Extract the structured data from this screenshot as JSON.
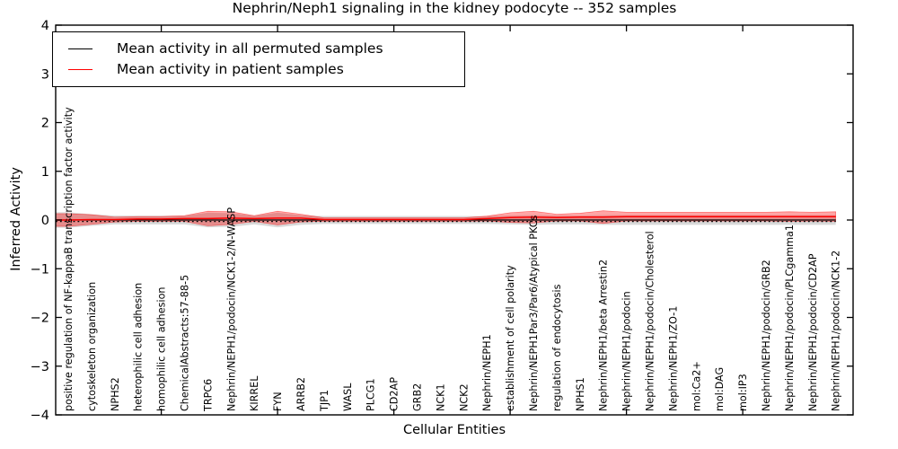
{
  "figure": {
    "title": "Nephrin/Neph1 signaling in the kidney podocyte -- 352 samples",
    "xlabel": "Cellular Entities",
    "ylabel": "Inferred Activity",
    "legend": [
      {
        "label": "Mean activity in all permuted samples",
        "color": "#000000"
      },
      {
        "label": "Mean activity in patient samples",
        "color": "#ff0000"
      }
    ]
  },
  "chart_data": {
    "type": "line",
    "title": "Nephrin/Neph1 signaling in the kidney podocyte -- 352 samples",
    "xlabel": "Cellular Entities",
    "ylabel": "Inferred Activity",
    "ylim": [
      -4,
      4
    ],
    "yticks": [
      4,
      3,
      2,
      1,
      0,
      -1,
      -2,
      -3,
      -4
    ],
    "xticks_major": [
      5,
      10,
      15,
      20,
      25,
      30
    ],
    "grid": false,
    "legend_position": "upper left",
    "categories": [
      "positive regulation of NF-kappaB transcription factor activity",
      "cytoskeleton organization",
      "NPHS2",
      "heterophilic cell adhesion",
      "homophilic cell adhesion",
      "ChemicalAbstracts:57-88-5",
      "TRPC6",
      "Nephrin/NEPH1/podocin/NCK1-2/N-WASP",
      "KIRREL",
      "FYN",
      "ARRB2",
      "TJP1",
      "WASL",
      "PLCG1",
      "CD2AP",
      "GRB2",
      "NCK1",
      "NCK2",
      "Nephrin/NEPH1",
      "establishment of cell polarity",
      "Nephrin/NEPH1Par3/Par6/Atypical PKCs",
      "regulation of endocytosis",
      "NPHS1",
      "Nephrin/NEPH1/beta Arrestin2",
      "Nephrin/NEPH1/podocin",
      "Nephrin/NEPH1/podocin/Cholesterol",
      "Nephrin/NEPH1/ZO-1",
      "mol:Ca2+",
      "mol:DAG",
      "mol:IP3",
      "Nephrin/NEPH1/podocin/GRB2",
      "Nephrin/NEPH1/podocin/PLCgamma1",
      "Nephrin/NEPH1/podocin/CD2AP",
      "Nephrin/NEPH1/podocin/NCK1-2"
    ],
    "series": [
      {
        "name": "Mean activity in all permuted samples",
        "color": "#000000",
        "line_style": "solid",
        "values": [
          0,
          0,
          0,
          0,
          0,
          0,
          0,
          0,
          0,
          0,
          0,
          0,
          0,
          0,
          0,
          0,
          0,
          0,
          0,
          0,
          0,
          0,
          0,
          0,
          0,
          0,
          0,
          0,
          0,
          0,
          0,
          0,
          0,
          0
        ],
        "band_halfwidth": [
          0.16,
          0.12,
          0.09,
          0.09,
          0.09,
          0.09,
          0.15,
          0.14,
          0.09,
          0.15,
          0.1,
          0.08,
          0.08,
          0.08,
          0.08,
          0.08,
          0.08,
          0.08,
          0.08,
          0.09,
          0.1,
          0.09,
          0.09,
          0.1,
          0.1,
          0.1,
          0.1,
          0.1,
          0.1,
          0.1,
          0.1,
          0.1,
          0.1,
          0.1
        ],
        "band_color": "rgba(125,125,125,0.30)"
      },
      {
        "name": "Mean activity in patient samples",
        "color": "#ff0000",
        "line_style": "solid",
        "values": [
          0.0,
          0.01,
          0.01,
          0.02,
          0.02,
          0.03,
          0.03,
          0.04,
          0.03,
          0.04,
          0.04,
          0.01,
          0.01,
          0.01,
          0.01,
          0.01,
          0.01,
          0.01,
          0.03,
          0.05,
          0.06,
          0.05,
          0.06,
          0.06,
          0.07,
          0.07,
          0.07,
          0.07,
          0.07,
          0.07,
          0.07,
          0.07,
          0.07,
          0.07
        ],
        "band_halfwidth": [
          0.13,
          0.1,
          0.05,
          0.05,
          0.05,
          0.06,
          0.15,
          0.13,
          0.06,
          0.14,
          0.08,
          0.035,
          0.035,
          0.035,
          0.035,
          0.035,
          0.035,
          0.035,
          0.05,
          0.1,
          0.12,
          0.07,
          0.08,
          0.13,
          0.09,
          0.09,
          0.09,
          0.09,
          0.09,
          0.09,
          0.09,
          0.1,
          0.09,
          0.1
        ],
        "band_color": "rgba(255,0,0,0.35)"
      }
    ],
    "zero_line": {
      "style": "dotted",
      "color": "#000000",
      "y": 0
    }
  }
}
